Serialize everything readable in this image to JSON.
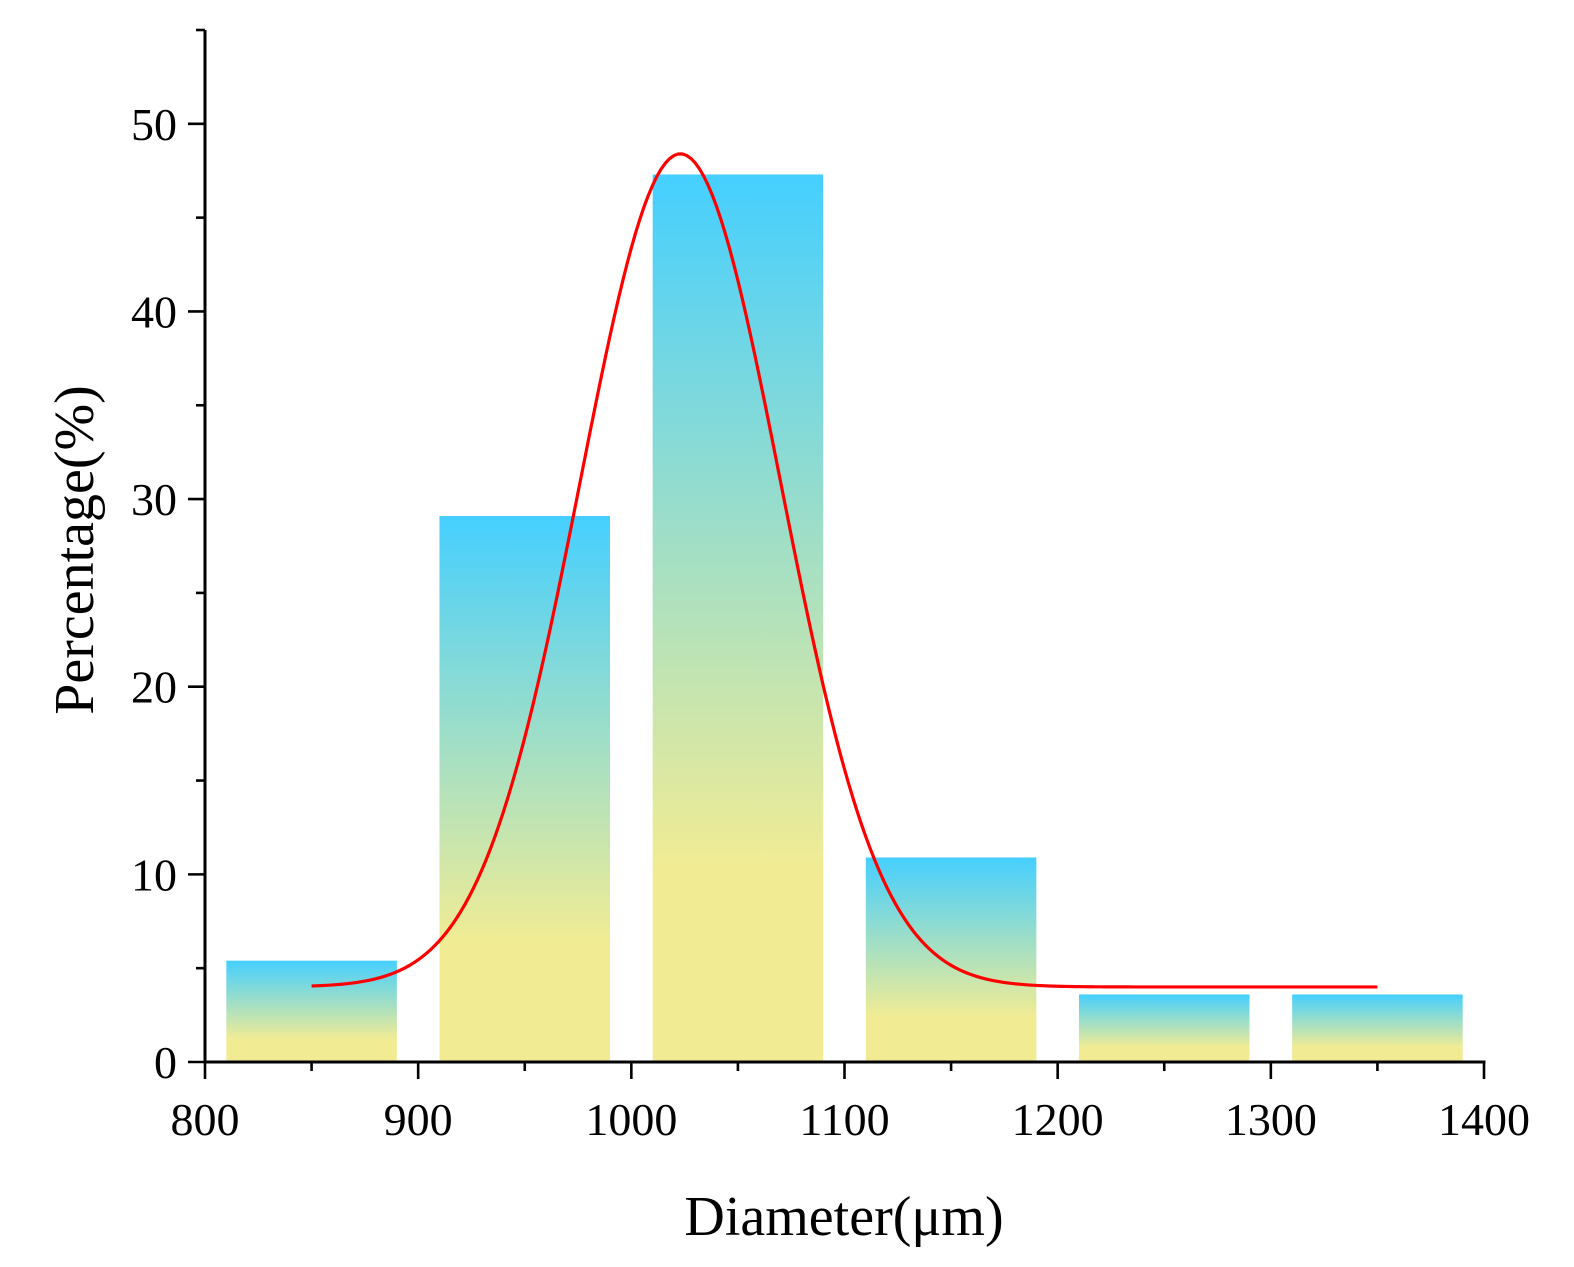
{
  "chart_data": {
    "type": "bar",
    "title": "",
    "xlabel": "Diameter(μm)",
    "ylabel": "Percentage(%)",
    "xlim": [
      800,
      1400
    ],
    "ylim": [
      0,
      55
    ],
    "x_ticks": [
      800,
      900,
      1000,
      1100,
      1200,
      1300,
      1400
    ],
    "y_ticks": [
      0,
      10,
      20,
      30,
      40,
      50
    ],
    "x_minor_step": 50,
    "y_minor_step": 5,
    "bar_width": 80,
    "bars": [
      {
        "center": 850,
        "value": 5.4
      },
      {
        "center": 950,
        "value": 29.1
      },
      {
        "center": 1050,
        "value": 47.3
      },
      {
        "center": 1150,
        "value": 10.9
      },
      {
        "center": 1250,
        "value": 3.6
      },
      {
        "center": 1350,
        "value": 3.6
      }
    ],
    "fit_curve": {
      "type": "gaussian",
      "baseline": 4.0,
      "amplitude": 44.4,
      "center": 1023,
      "sigma": 47,
      "x_range": [
        850,
        1350
      ],
      "color": "#ff0000"
    },
    "bar_gradient": {
      "top": "#45cfff",
      "bottom": "#f1ec94"
    },
    "grid": false,
    "legend": "none"
  }
}
